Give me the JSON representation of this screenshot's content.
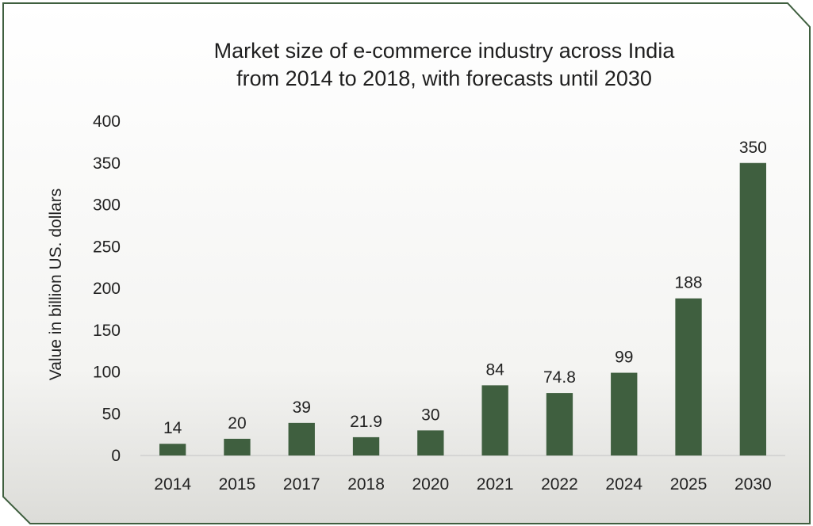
{
  "chart_data": {
    "type": "bar",
    "title_lines": [
      "Market size of e-commerce industry across India",
      "from 2014 to 2018, with forecasts until 2030"
    ],
    "xlabel": "",
    "ylabel": "Value in billion US. dollars",
    "ylim": [
      0,
      400
    ],
    "yticks": [
      0,
      50,
      100,
      150,
      200,
      250,
      300,
      350,
      400
    ],
    "grid": false,
    "legend": "none",
    "categories": [
      "2014",
      "2015",
      "2017",
      "2018",
      "2020",
      "2021",
      "2022",
      "2024",
      "2025",
      "2030"
    ],
    "values": [
      14,
      20,
      39,
      21.9,
      30,
      84,
      74.8,
      99,
      188,
      350
    ],
    "value_labels": [
      "14",
      "20",
      "39",
      "21.9",
      "30",
      "84",
      "74.8",
      "99",
      "188",
      "350"
    ],
    "bar_color": "#3f5f3f",
    "frame_color": "#3f5f3f"
  }
}
